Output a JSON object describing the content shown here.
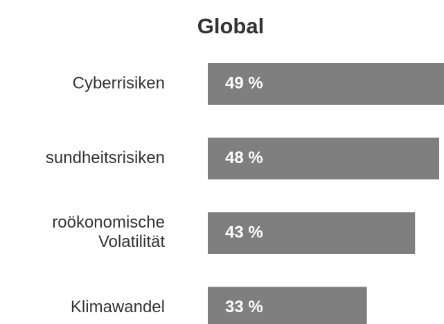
{
  "chart_data": {
    "type": "bar",
    "orientation": "horizontal",
    "title": "Global",
    "categories": [
      "Cyberrisiken",
      "sundheitsrisiken",
      [
        "roökonomische",
        "Volatilität"
      ],
      "Klimawandel"
    ],
    "values": [
      49,
      48,
      43,
      33
    ],
    "value_labels": [
      "49 %",
      "48 %",
      "43 %",
      "33 %"
    ],
    "color": "#7f7f7f",
    "xlim": [
      0,
      49
    ]
  }
}
